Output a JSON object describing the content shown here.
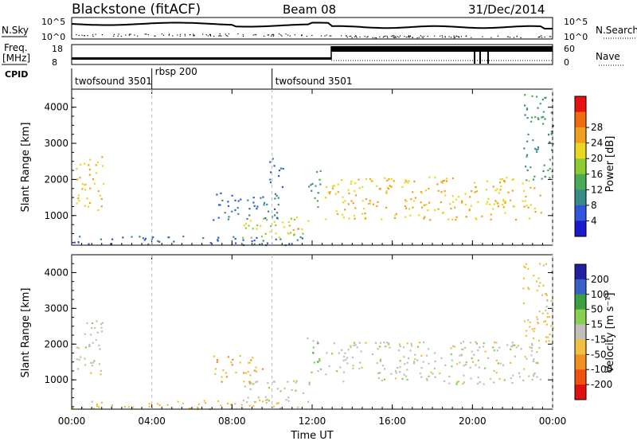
{
  "header": {
    "station_label": "Blackstone (fitACF)",
    "beam_label": "Beam 08",
    "date_label": "31/Dec/2014"
  },
  "side_labels": {
    "nsky": "N.Sky",
    "nsearch": "N.Search",
    "freq_top": "Freq.",
    "freq_unit": "[MHz]",
    "nave": "Nave",
    "cpid": "CPID"
  },
  "nsky_panel": {
    "left_ticks": [
      "10^5",
      "10^0"
    ],
    "right_ticks": [
      "10^5",
      "10^0"
    ]
  },
  "freq_panel": {
    "left_ticks": [
      "18",
      "8"
    ],
    "right_ticks": [
      "60",
      "0"
    ]
  },
  "cpid_segments": [
    {
      "label": "twofsound 3501",
      "start_hour": 0
    },
    {
      "label": "rbsp 200",
      "start_hour": 4
    },
    {
      "label": "twofsound 3501",
      "start_hour": 10
    }
  ],
  "x_axis": {
    "label": "Time UT",
    "ticks": [
      "00:00",
      "04:00",
      "08:00",
      "12:00",
      "16:00",
      "20:00",
      "00:00"
    ],
    "tick_hours": [
      0,
      4,
      8,
      12,
      16,
      20,
      24
    ],
    "range_hours": [
      0,
      24
    ]
  },
  "y_axis": {
    "label": "Slant Range [km]",
    "ticks": [
      "1000",
      "2000",
      "3000",
      "4000"
    ],
    "tick_values": [
      1000,
      2000,
      3000,
      4000
    ],
    "range_km": [
      180,
      4500
    ]
  },
  "colorbars": {
    "power": {
      "label": "Power [dB]",
      "ticks": [
        "4",
        "8",
        "12",
        "16",
        "20",
        "24",
        "28"
      ],
      "colors": [
        "#1a1acc",
        "#3355dd",
        "#3a8a8a",
        "#4aaa55",
        "#8ccc33",
        "#e8d820",
        "#f0a020",
        "#f06a10",
        "#e81010"
      ]
    },
    "velocity": {
      "label": "Velocity [m s⁻¹]",
      "ticks": [
        "200",
        "100",
        "50",
        "15",
        "-15",
        "-50",
        "-100",
        "-200"
      ],
      "colors": [
        "#2020a0",
        "#3a60c8",
        "#3aa040",
        "#88d050",
        "#c0c0b8",
        "#f0c040",
        "#f09020",
        "#f05010",
        "#e01010"
      ]
    }
  },
  "chart_data": [
    {
      "type": "heatmap",
      "name": "Power",
      "x": "Time UT (hours)",
      "y": "Slant Range [km]",
      "xlim": [
        0,
        24
      ],
      "ylim": [
        180,
        4500
      ],
      "colorbar_label": "Power [dB]",
      "color_ticks": [
        4,
        8,
        12,
        16,
        20,
        24,
        28
      ],
      "scatter_regions": [
        {
          "t_start": 0.2,
          "t_end": 1.6,
          "r_low": 1150,
          "r_high": 2700,
          "power_db": 22
        },
        {
          "t_start": 0.0,
          "t_end": 11.5,
          "r_low": 200,
          "r_high": 450,
          "power_db": 8
        },
        {
          "t_start": 7.0,
          "t_end": 10.5,
          "r_low": 900,
          "r_high": 1700,
          "power_db": 6
        },
        {
          "t_start": 8.5,
          "t_end": 12.0,
          "r_low": 400,
          "r_high": 1000,
          "power_db": 20
        },
        {
          "t_start": 10.8,
          "t_end": 11.6,
          "r_low": 550,
          "r_high": 800,
          "power_db": 28
        },
        {
          "t_start": 9.8,
          "t_end": 10.6,
          "r_low": 1800,
          "r_high": 2600,
          "power_db": 8
        },
        {
          "t_start": 11.7,
          "t_end": 12.4,
          "r_low": 1200,
          "r_high": 2300,
          "power_db": 10
        },
        {
          "t_start": 12.6,
          "t_end": 23.4,
          "r_low": 900,
          "r_high": 2100,
          "power_db": 22
        },
        {
          "t_start": 22.5,
          "t_end": 24.0,
          "r_low": 2000,
          "r_high": 4400,
          "power_db": 10
        }
      ]
    },
    {
      "type": "heatmap",
      "name": "Velocity",
      "x": "Time UT (hours)",
      "y": "Slant Range [km]",
      "xlim": [
        0,
        24
      ],
      "ylim": [
        180,
        4500
      ],
      "colorbar_label": "Velocity [m s⁻¹]",
      "color_ticks": [
        200,
        100,
        50,
        15,
        -15,
        -50,
        -100,
        -200
      ],
      "scatter_regions": [
        {
          "t_start": 0.2,
          "t_end": 1.6,
          "r_low": 1150,
          "r_high": 2700,
          "velocity": 0
        },
        {
          "t_start": 0.0,
          "t_end": 11.5,
          "r_low": 200,
          "r_high": 450,
          "velocity": -30
        },
        {
          "t_start": 7.0,
          "t_end": 9.5,
          "r_low": 900,
          "r_high": 1700,
          "velocity": -50
        },
        {
          "t_start": 8.5,
          "t_end": 12.0,
          "r_low": 400,
          "r_high": 1000,
          "velocity": 0
        },
        {
          "t_start": 11.7,
          "t_end": 12.4,
          "r_low": 1200,
          "r_high": 2300,
          "velocity": 30
        },
        {
          "t_start": 12.6,
          "t_end": 23.4,
          "r_low": 900,
          "r_high": 2100,
          "velocity": 0
        },
        {
          "t_start": 22.5,
          "t_end": 24.0,
          "r_low": 2000,
          "r_high": 4400,
          "velocity": -30
        }
      ]
    }
  ]
}
